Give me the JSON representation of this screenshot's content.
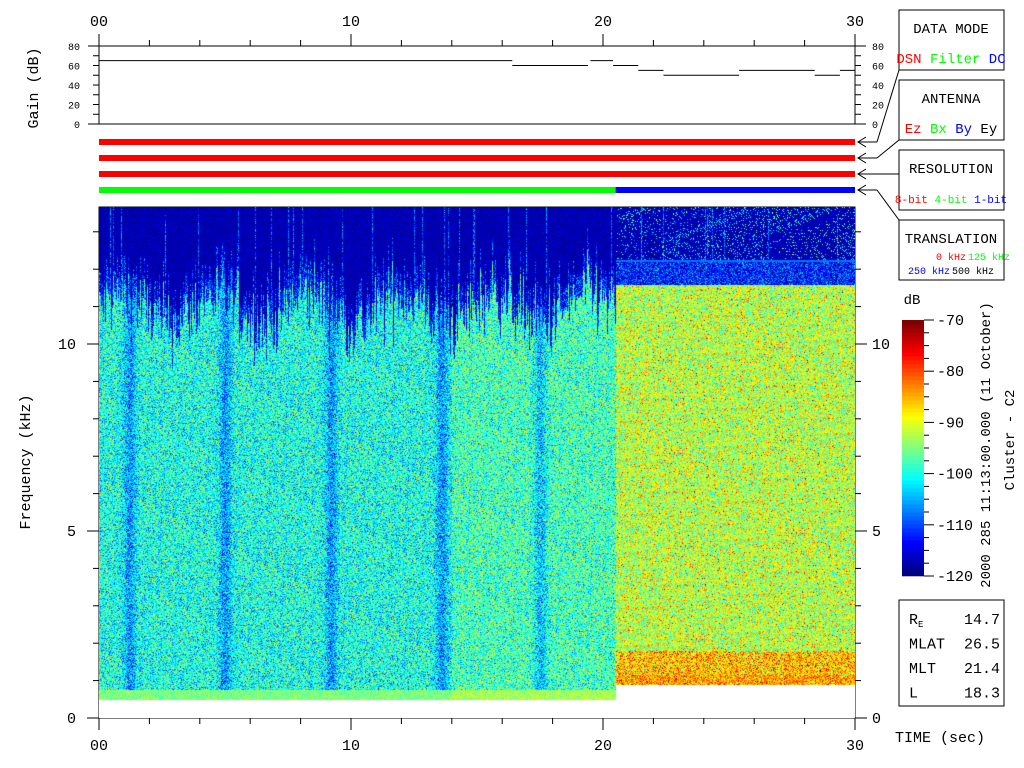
{
  "chart_data": [
    {
      "type": "line",
      "name_text": "",
      "ylabel": "Gain (dB)",
      "x_ticks": [
        "00",
        "10",
        "20",
        "30"
      ],
      "y_ticks": [
        "0",
        "20",
        "40",
        "60",
        "80"
      ],
      "xlim": [
        0,
        30
      ],
      "ylim": [
        0,
        80
      ],
      "segments": [
        {
          "x0": 0,
          "x1": 16.4,
          "y": 65
        },
        {
          "x0": 16.4,
          "x1": 19.4,
          "y": 60
        },
        {
          "x0": 19.5,
          "x1": 20.4,
          "y": 65
        },
        {
          "x0": 20.4,
          "x1": 21.4,
          "y": 60
        },
        {
          "x0": 21.4,
          "x1": 22.4,
          "y": 55
        },
        {
          "x0": 22.4,
          "x1": 25.4,
          "y": 50
        },
        {
          "x0": 25.4,
          "x1": 28.4,
          "y": 55
        },
        {
          "x0": 28.4,
          "x1": 29.4,
          "y": 50
        },
        {
          "x0": 29.4,
          "x1": 30,
          "y": 55
        }
      ]
    },
    {
      "type": "status-bars",
      "xlim": [
        0,
        30
      ],
      "bars": [
        {
          "label": "data-mode",
          "segments": [
            {
              "x0": 0,
              "x1": 30,
              "color": "#ff0000"
            }
          ]
        },
        {
          "label": "antenna",
          "segments": [
            {
              "x0": 0,
              "x1": 30,
              "color": "#ff0000"
            }
          ]
        },
        {
          "label": "resolution",
          "segments": [
            {
              "x0": 0,
              "x1": 30,
              "color": "#ff0000"
            }
          ]
        },
        {
          "label": "translation",
          "segments": [
            {
              "x0": 0,
              "x1": 20.5,
              "color": "#00ff00"
            },
            {
              "x0": 20.5,
              "x1": 30,
              "color": "#0000ff"
            }
          ]
        }
      ]
    },
    {
      "type": "heatmap",
      "xlabel": "TIME (sec)",
      "ylabel": "Frequency (kHz)",
      "x_ticks": [
        "00",
        "10",
        "20",
        "30"
      ],
      "y_ticks": [
        "0",
        "5",
        "10"
      ],
      "xlim": [
        0,
        30
      ],
      "ylim": [
        0,
        13.7
      ],
      "colormap": "jet",
      "colorbar": {
        "title": "dB",
        "range": [
          -120,
          -70
        ],
        "ticks": [
          "-70",
          "-80",
          "-90",
          "-100",
          "-110",
          "-120"
        ]
      },
      "regions": [
        {
          "x0": 0,
          "x1": 20.5,
          "f_min_khz": 0.5,
          "noise_top_khz": 11.5,
          "typical_db": -100
        },
        {
          "x0": 20.5,
          "x1": 30,
          "f_min_khz": 0.9,
          "noise_top_khz": 12.2,
          "typical_db": -92
        }
      ]
    }
  ],
  "panels": {
    "data_mode": {
      "title": "DATA MODE",
      "items": [
        {
          "text": "DSN",
          "color": "#ff0000"
        },
        {
          "text": "Filter",
          "color": "#00ff00"
        },
        {
          "text": "DC",
          "color": "#0000ff"
        }
      ]
    },
    "antenna": {
      "title": "ANTENNA",
      "items": [
        {
          "text": "Ez",
          "color": "#ff0000"
        },
        {
          "text": "Bx",
          "color": "#00ff00"
        },
        {
          "text": "By",
          "color": "#0000ff"
        },
        {
          "text": "Ey",
          "color": "#000000"
        }
      ]
    },
    "resolution": {
      "title": "RESOLUTION",
      "items": [
        {
          "text": "8-bit",
          "color": "#ff0000"
        },
        {
          "text": "4-bit",
          "color": "#00ff00"
        },
        {
          "text": "1-bit",
          "color": "#0000ff"
        }
      ]
    },
    "translation": {
      "title": "TRANSLATION",
      "items": [
        {
          "text": "0 kHz",
          "color": "#ff0000"
        },
        {
          "text": "125 kHz",
          "color": "#00ff00"
        },
        {
          "text": "250 kHz",
          "color": "#0000ff"
        },
        {
          "text": "500 kHz",
          "color": "#000000"
        }
      ]
    }
  },
  "side_title": {
    "line1": "2000 285 11:13:00.000 (11 October)",
    "line2": "Cluster - C2"
  },
  "info": [
    {
      "label": "R",
      "sub": "E",
      "value": "14.7"
    },
    {
      "label": "MLAT",
      "sub": "",
      "value": "26.5"
    },
    {
      "label": "MLT",
      "sub": "",
      "value": "21.4"
    },
    {
      "label": "L",
      "sub": "",
      "value": "18.3"
    }
  ]
}
